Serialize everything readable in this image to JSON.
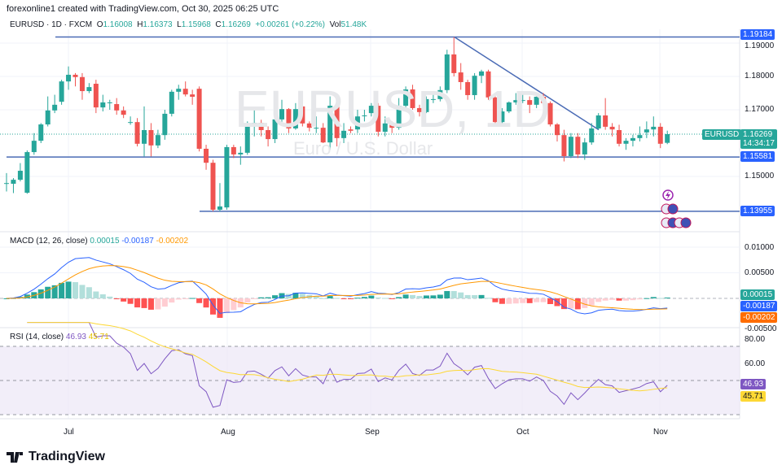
{
  "credit": "forexonline1 created with TradingView.com, Oct 30, 2025 06:25 UTC",
  "legend": {
    "symbol": "EURUSD · 1D · FXCM",
    "o_label": "O",
    "o": "1.16008",
    "h_label": "H",
    "h": "1.16373",
    "l_label": "L",
    "l": "1.15968",
    "c_label": "C",
    "c": "1.16269",
    "change": "+0.00261 (+0.22%)",
    "vol_label": "Vol",
    "vol": "51.48K"
  },
  "watermark": {
    "symbol": "EURUSD, 1D",
    "description": "Euro / U.S. Dollar"
  },
  "price_axis": {
    "ticks": [
      "1.19000",
      "1.18000",
      "1.17000",
      "1.15000"
    ],
    "levels": [
      {
        "label": "1.19184",
        "value": 1.19184
      },
      {
        "label": "1.15581",
        "value": 1.15581
      },
      {
        "label": "1.13955",
        "value": 1.13955
      }
    ],
    "last_symbol": "EURUSD",
    "last_price": "1.16269",
    "countdown": "14:34:17"
  },
  "macd": {
    "title": "MACD (12, 26, close)",
    "hist": "0.00015",
    "macd": "-0.00187",
    "signal": "-0.00202",
    "ticks": [
      "0.01000",
      "0.00500",
      "-0.00500"
    ]
  },
  "rsi": {
    "title": "RSI (14, close)",
    "rsi": "46.93",
    "ma": "45.71",
    "ticks": [
      "80.00",
      "60.00"
    ]
  },
  "time_axis": [
    "Jul",
    "Aug",
    "Sep",
    "Oct",
    "Nov"
  ],
  "brand": "TradingView",
  "colors": {
    "up": "#26a69a",
    "down": "#ef5350",
    "line": "#4a6bb5",
    "macd": "#2962ff",
    "signal": "#ff9800",
    "rsi": "#7e57c2",
    "rsi_ma": "#fdd835",
    "level_tag": "#2962ff"
  },
  "icons": [
    "lightning-event-icon",
    "us-flag-event-icon",
    "eu-flag-event-icon"
  ],
  "chart_data": {
    "type": "candlestick",
    "symbol": "EURUSD",
    "interval": "1D",
    "ylim": [
      1.135,
      1.194
    ],
    "grid": true,
    "horizontal_levels": [
      1.19184,
      1.15581,
      1.13955
    ],
    "trendline": {
      "from": 1.1918,
      "to": 1.164
    },
    "candles": [
      [
        1.1478,
        1.151,
        1.1455,
        1.148
      ],
      [
        1.1478,
        1.1495,
        1.145,
        1.149
      ],
      [
        1.149,
        1.154,
        1.1485,
        1.1517
      ],
      [
        1.1451,
        1.1578,
        1.1448,
        1.1573
      ],
      [
        1.1573,
        1.163,
        1.1565,
        1.1607
      ],
      [
        1.1607,
        1.166,
        1.16,
        1.1656
      ],
      [
        1.1656,
        1.174,
        1.165,
        1.1698
      ],
      [
        1.1698,
        1.1745,
        1.169,
        1.1715
      ],
      [
        1.1724,
        1.179,
        1.1715,
        1.1785
      ],
      [
        1.1785,
        1.183,
        1.176,
        1.1805
      ],
      [
        1.1805,
        1.181,
        1.177,
        1.1798
      ],
      [
        1.1798,
        1.181,
        1.173,
        1.1756
      ],
      [
        1.1756,
        1.178,
        1.175,
        1.1768
      ],
      [
        1.1778,
        1.179,
        1.169,
        1.1707
      ],
      [
        1.1707,
        1.1745,
        1.1695,
        1.1722
      ],
      [
        1.1722,
        1.173,
        1.17,
        1.1722
      ],
      [
        1.1717,
        1.1735,
        1.1685,
        1.1698
      ],
      [
        1.1698,
        1.171,
        1.1675,
        1.1685
      ],
      [
        1.1663,
        1.168,
        1.1655,
        1.1663
      ],
      [
        1.1663,
        1.1675,
        1.159,
        1.1598
      ],
      [
        1.1598,
        1.171,
        1.156,
        1.1639
      ],
      [
        1.1639,
        1.166,
        1.156,
        1.1593
      ],
      [
        1.1593,
        1.164,
        1.1585,
        1.1624
      ],
      [
        1.1624,
        1.17,
        1.161,
        1.1688
      ],
      [
        1.1688,
        1.176,
        1.168,
        1.1754
      ],
      [
        1.1754,
        1.1775,
        1.173,
        1.1763
      ],
      [
        1.1763,
        1.1785,
        1.174,
        1.1746
      ],
      [
        1.1746,
        1.176,
        1.1715,
        1.1739
      ],
      [
        1.1763,
        1.177,
        1.1575,
        1.1583
      ],
      [
        1.1583,
        1.1595,
        1.152,
        1.1541
      ],
      [
        1.1541,
        1.155,
        1.1395,
        1.14
      ],
      [
        1.14,
        1.148,
        1.1395,
        1.141
      ],
      [
        1.1407,
        1.1595,
        1.14,
        1.1588
      ],
      [
        1.1588,
        1.1595,
        1.1555,
        1.1566
      ],
      [
        1.1566,
        1.159,
        1.1535,
        1.1571
      ],
      [
        1.1571,
        1.1665,
        1.1565,
        1.1656
      ],
      [
        1.1656,
        1.17,
        1.162,
        1.1661
      ],
      [
        1.1661,
        1.167,
        1.162,
        1.1639
      ],
      [
        1.1639,
        1.165,
        1.159,
        1.1612
      ],
      [
        1.1612,
        1.168,
        1.16,
        1.1671
      ],
      [
        1.1671,
        1.173,
        1.166,
        1.1702
      ],
      [
        1.1702,
        1.1705,
        1.163,
        1.1644
      ],
      [
        1.1644,
        1.172,
        1.164,
        1.1702
      ],
      [
        1.171,
        1.1715,
        1.165,
        1.1659
      ],
      [
        1.1659,
        1.1665,
        1.1635,
        1.1646
      ],
      [
        1.1646,
        1.168,
        1.163,
        1.1646
      ],
      [
        1.1646,
        1.166,
        1.16,
        1.1602
      ],
      [
        1.1602,
        1.174,
        1.158,
        1.1712
      ],
      [
        1.1712,
        1.172,
        1.159,
        1.1615
      ],
      [
        1.1615,
        1.166,
        1.16,
        1.1637
      ],
      [
        1.1641,
        1.165,
        1.163,
        1.1637
      ],
      [
        1.1641,
        1.17,
        1.163,
        1.168
      ],
      [
        1.1683,
        1.17,
        1.1665,
        1.1683
      ],
      [
        1.169,
        1.172,
        1.168,
        1.1712
      ],
      [
        1.1712,
        1.172,
        1.162,
        1.1634
      ],
      [
        1.1634,
        1.168,
        1.162,
        1.1659
      ],
      [
        1.1659,
        1.1665,
        1.163,
        1.1646
      ],
      [
        1.1646,
        1.1735,
        1.164,
        1.1712
      ],
      [
        1.1712,
        1.177,
        1.1705,
        1.1761
      ],
      [
        1.1761,
        1.1775,
        1.17,
        1.1705
      ],
      [
        1.1705,
        1.1715,
        1.168,
        1.1693
      ],
      [
        1.1693,
        1.174,
        1.169,
        1.1732
      ],
      [
        1.1732,
        1.1745,
        1.172,
        1.1732
      ],
      [
        1.1732,
        1.177,
        1.1725,
        1.1759
      ],
      [
        1.1759,
        1.188,
        1.175,
        1.1866
      ],
      [
        1.1866,
        1.1918,
        1.18,
        1.181
      ],
      [
        1.1812,
        1.184,
        1.176,
        1.1783
      ],
      [
        1.1783,
        1.179,
        1.173,
        1.1744
      ],
      [
        1.1744,
        1.181,
        1.173,
        1.1802
      ],
      [
        1.1802,
        1.182,
        1.178,
        1.1815
      ],
      [
        1.1815,
        1.182,
        1.173,
        1.1737
      ],
      [
        1.1737,
        1.1745,
        1.165,
        1.1663
      ],
      [
        1.1663,
        1.1705,
        1.1655,
        1.1695
      ],
      [
        1.1695,
        1.1725,
        1.169,
        1.1722
      ],
      [
        1.1722,
        1.175,
        1.1715,
        1.1729
      ],
      [
        1.1729,
        1.1755,
        1.172,
        1.1729
      ],
      [
        1.1729,
        1.174,
        1.169,
        1.1715
      ],
      [
        1.1715,
        1.175,
        1.1705,
        1.1739
      ],
      [
        1.1739,
        1.175,
        1.167,
        1.172
      ],
      [
        1.172,
        1.1725,
        1.165,
        1.1656
      ],
      [
        1.1656,
        1.166,
        1.1605,
        1.1624
      ],
      [
        1.1624,
        1.164,
        1.1545,
        1.1561
      ],
      [
        1.1561,
        1.163,
        1.1555,
        1.1619
      ],
      [
        1.1619,
        1.163,
        1.1555,
        1.1566
      ],
      [
        1.1566,
        1.1615,
        1.155,
        1.1602
      ],
      [
        1.1602,
        1.166,
        1.1595,
        1.1644
      ],
      [
        1.1644,
        1.169,
        1.164,
        1.1683
      ],
      [
        1.1683,
        1.1735,
        1.164,
        1.1649
      ],
      [
        1.1649,
        1.166,
        1.162,
        1.1641
      ],
      [
        1.1639,
        1.1655,
        1.159,
        1.1598
      ],
      [
        1.1598,
        1.1615,
        1.158,
        1.1607
      ],
      [
        1.1607,
        1.1625,
        1.159,
        1.1615
      ],
      [
        1.1615,
        1.165,
        1.1605,
        1.1624
      ],
      [
        1.1632,
        1.1665,
        1.1615,
        1.1641
      ],
      [
        1.1641,
        1.168,
        1.162,
        1.1649
      ],
      [
        1.1649,
        1.166,
        1.1585,
        1.1598
      ],
      [
        1.16008,
        1.16373,
        1.15968,
        1.16269
      ]
    ],
    "macd_ylim": [
      -0.0065,
      0.0115
    ],
    "rsi_ylim": [
      20,
      85
    ],
    "rsi_band": [
      30,
      70
    ],
    "x_ticks": [
      "Jul",
      "Aug",
      "Sep",
      "Oct",
      "Nov"
    ]
  }
}
